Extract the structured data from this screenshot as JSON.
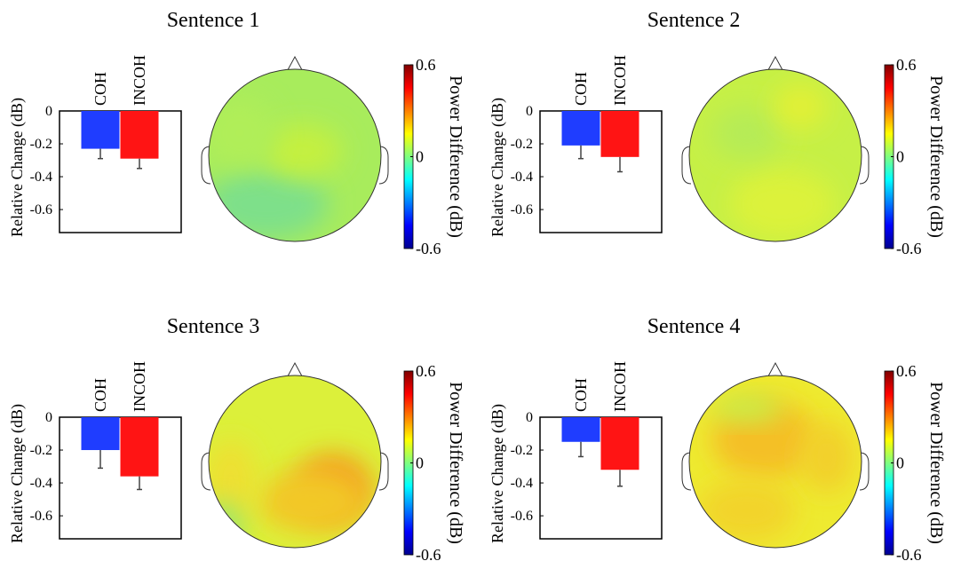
{
  "chart_data": [
    {
      "type": "bar",
      "title": "Sentence 1",
      "categories": [
        "COH",
        "INCOH"
      ],
      "values": [
        -0.23,
        -0.29
      ],
      "errors": [
        0.06,
        0.06
      ],
      "colors": [
        "#1f3dff",
        "#ff1414"
      ],
      "y_label": "Relative Change (dB)",
      "ylim": [
        -0.74,
        0
      ],
      "yticks": [
        0,
        -0.2,
        -0.4,
        -0.6
      ],
      "colorbar": {
        "label": "Power Difference (dB)",
        "lim": [
          -0.6,
          0.6
        ],
        "ticks": [
          -0.6,
          0,
          0.6
        ]
      }
    },
    {
      "type": "bar",
      "title": "Sentence 2",
      "categories": [
        "COH",
        "INCOH"
      ],
      "values": [
        -0.21,
        -0.28
      ],
      "errors": [
        0.08,
        0.09
      ],
      "colors": [
        "#1f3dff",
        "#ff1414"
      ],
      "y_label": "Relative Change (dB)",
      "ylim": [
        -0.74,
        0
      ],
      "yticks": [
        0,
        -0.2,
        -0.4,
        -0.6
      ],
      "colorbar": {
        "label": "Power Difference (dB)",
        "lim": [
          -0.6,
          0.6
        ],
        "ticks": [
          -0.6,
          0,
          0.6
        ]
      }
    },
    {
      "type": "bar",
      "title": "Sentence 3",
      "categories": [
        "COH",
        "INCOH"
      ],
      "values": [
        -0.2,
        -0.36
      ],
      "errors": [
        0.11,
        0.08
      ],
      "colors": [
        "#1f3dff",
        "#ff1414"
      ],
      "y_label": "Relative Change (dB)",
      "ylim": [
        -0.74,
        0
      ],
      "yticks": [
        0,
        -0.2,
        -0.4,
        -0.6
      ],
      "colorbar": {
        "label": "Power Difference (dB)",
        "lim": [
          -0.6,
          0.6
        ],
        "ticks": [
          -0.6,
          0,
          0.6
        ]
      }
    },
    {
      "type": "bar",
      "title": "Sentence 4",
      "categories": [
        "COH",
        "INCOH"
      ],
      "values": [
        -0.15,
        -0.32
      ],
      "errors": [
        0.09,
        0.1
      ],
      "colors": [
        "#1f3dff",
        "#ff1414"
      ],
      "y_label": "Relative Change (dB)",
      "ylim": [
        -0.74,
        0
      ],
      "yticks": [
        0,
        -0.2,
        -0.4,
        -0.6
      ],
      "colorbar": {
        "label": "Power Difference (dB)",
        "lim": [
          -0.6,
          0.6
        ],
        "ticks": [
          -0.6,
          0,
          0.6
        ]
      }
    }
  ]
}
